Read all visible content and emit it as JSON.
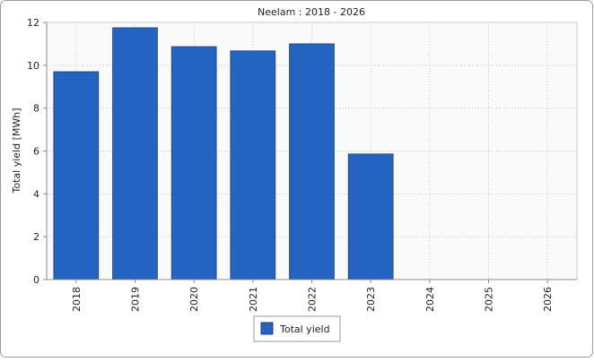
{
  "chart_data": {
    "type": "bar",
    "title": "Neelam : 2018 - 2026",
    "y_label": "Total yield [MWh]",
    "categories": [
      "2018",
      "2019",
      "2020",
      "2021",
      "2022",
      "2023",
      "2024",
      "2025",
      "2026"
    ],
    "series": [
      {
        "name": "Total yield",
        "color": "#2563c0",
        "values": [
          9.7,
          11.75,
          10.87,
          10.67,
          11.0,
          5.86,
          null,
          null,
          null
        ]
      }
    ],
    "ylim": [
      0,
      12
    ],
    "yticks": [
      0,
      2,
      4,
      6,
      8,
      10,
      12
    ],
    "grid": true,
    "legend": "bottom"
  }
}
